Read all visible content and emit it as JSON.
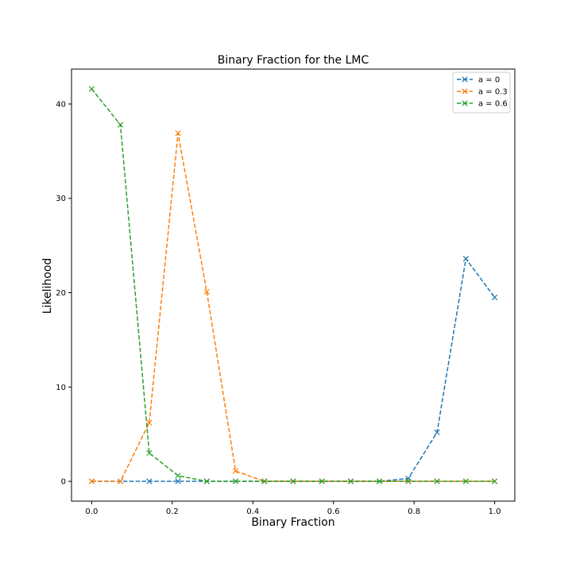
{
  "chart_data": {
    "type": "line",
    "title": "Binary Fraction for the LMC",
    "xlabel": "Binary Fraction",
    "ylabel": "Likelihood",
    "xlim": [
      -0.05,
      1.05
    ],
    "ylim": [
      -2.1,
      43.7
    ],
    "xticks": [
      0.0,
      0.2,
      0.4,
      0.6,
      0.8,
      1.0
    ],
    "xtick_labels": [
      "0.0",
      "0.2",
      "0.4",
      "0.6",
      "0.8",
      "1.0"
    ],
    "yticks": [
      0,
      10,
      20,
      30,
      40
    ],
    "ytick_labels": [
      "0",
      "10",
      "20",
      "30",
      "40"
    ],
    "grid": false,
    "legend_position": "top-right",
    "marker": "x",
    "line_style": "dashed",
    "x": [
      0.0,
      0.0714,
      0.1429,
      0.2143,
      0.2857,
      0.3571,
      0.4286,
      0.5,
      0.5714,
      0.6429,
      0.7143,
      0.7857,
      0.8571,
      0.9286,
      1.0
    ],
    "series": [
      {
        "name": "a = 0",
        "color": "#1f77b4",
        "values": [
          0,
          0,
          0,
          0,
          0,
          0,
          0,
          0,
          0,
          0,
          0,
          0.3,
          5.2,
          23.6,
          19.5
        ]
      },
      {
        "name": "a = 0.3",
        "color": "#ff7f0e",
        "values": [
          0,
          0,
          6.2,
          36.9,
          20.1,
          1.1,
          0,
          0,
          0,
          0,
          0,
          0,
          0,
          0,
          0
        ]
      },
      {
        "name": "a = 0.6",
        "color": "#2ca02c",
        "values": [
          41.6,
          37.8,
          3.0,
          0.6,
          0,
          0,
          0,
          0,
          0,
          0,
          0,
          0,
          0,
          0,
          0
        ]
      }
    ]
  }
}
